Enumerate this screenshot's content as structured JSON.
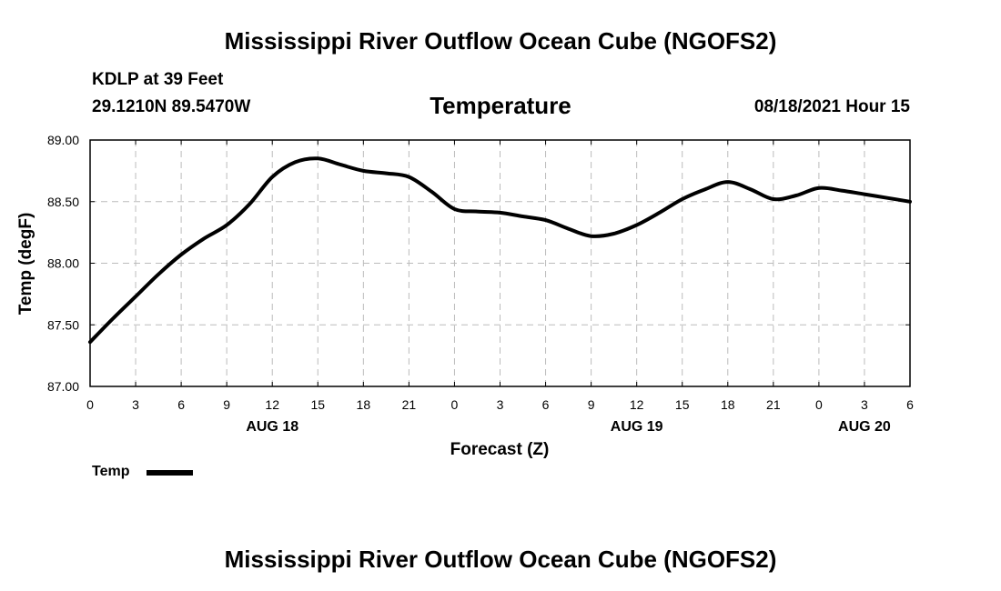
{
  "header": {
    "title": "Mississippi River Outflow Ocean Cube (NGOFS2)",
    "station": "KDLP at 39 Feet",
    "coords": "29.1210N  89.5470W",
    "variable": "Temperature",
    "datetime": "08/18/2021 Hour 15"
  },
  "footer": {
    "title": "Mississippi River Outflow Ocean Cube (NGOFS2)"
  },
  "legend": {
    "label": "Temp",
    "color": "#000000"
  },
  "chart_data": {
    "type": "line",
    "title": "Temperature",
    "xlabel": "Forecast (Z)",
    "ylabel": "Temp (degF)",
    "ylim": [
      87.0,
      89.0
    ],
    "xlim": [
      0,
      54
    ],
    "grid": true,
    "yticks": [
      "87.00",
      "87.50",
      "88.00",
      "88.50",
      "89.00"
    ],
    "ytick_values": [
      87.0,
      87.5,
      88.0,
      88.5,
      89.0
    ],
    "xtick_hours": [
      0,
      3,
      6,
      9,
      12,
      15,
      18,
      21,
      24,
      27,
      30,
      33,
      36,
      39,
      42,
      45,
      48,
      51,
      54
    ],
    "xtick_labels": [
      "0",
      "3",
      "6",
      "9",
      "12",
      "15",
      "18",
      "21",
      "0",
      "3",
      "6",
      "9",
      "12",
      "15",
      "18",
      "21",
      "0",
      "3",
      "6"
    ],
    "date_labels": [
      {
        "hour": 12,
        "label": "AUG 18"
      },
      {
        "hour": 36,
        "label": "AUG 19"
      },
      {
        "hour": 51,
        "label": "AUG 20"
      }
    ],
    "series": [
      {
        "name": "Temp",
        "x": [
          0,
          1.5,
          3,
          4.5,
          6,
          7.5,
          9,
          10.5,
          12,
          13.5,
          15,
          16.5,
          18,
          19.5,
          21,
          22.5,
          24,
          25.5,
          27,
          28.5,
          30,
          31.5,
          33,
          34.5,
          36,
          37.5,
          39,
          40.5,
          42,
          43.5,
          45,
          46.5,
          48,
          49.5,
          51,
          52.5,
          54
        ],
        "values": [
          87.36,
          87.55,
          87.73,
          87.91,
          88.07,
          88.2,
          88.31,
          88.48,
          88.7,
          88.82,
          88.85,
          88.8,
          88.75,
          88.73,
          88.7,
          88.58,
          88.44,
          88.42,
          88.41,
          88.38,
          88.35,
          88.28,
          88.22,
          88.24,
          88.31,
          88.41,
          88.52,
          88.6,
          88.66,
          88.6,
          88.52,
          88.55,
          88.61,
          88.59,
          88.56,
          88.53,
          88.5
        ]
      }
    ]
  }
}
